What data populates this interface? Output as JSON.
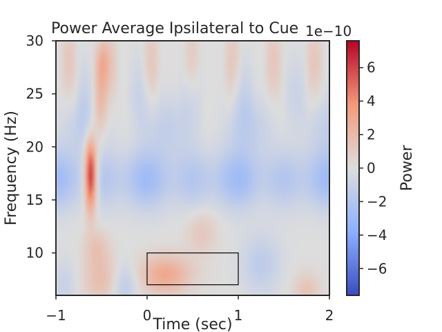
{
  "chart_data": {
    "type": "heatmap",
    "title": "Power Average Ipsilateral to Cue",
    "xlabel": "Time (sec)",
    "ylabel": "Frequency (Hz)",
    "xlim": [
      -1,
      2
    ],
    "ylim": [
      6,
      30
    ],
    "xticks": [
      "−1",
      "0",
      "1",
      "2"
    ],
    "yticks": [
      "10",
      "15",
      "20",
      "25",
      "30"
    ],
    "colormap": "coolwarm",
    "colorbar": {
      "label": "Power",
      "offset_text": "1e−10",
      "range": [
        -7.6,
        7.6
      ],
      "ticks": [
        "−6",
        "−4",
        "−2",
        "0",
        "2",
        "4",
        "6"
      ]
    },
    "features": [
      {
        "description": "positive power streak",
        "t": -0.6,
        "f": [
          14,
          25
        ],
        "value_peak": 6.5
      },
      {
        "description": "broad negative beta band",
        "t": [
          -1,
          2
        ],
        "f": [
          15,
          20
        ],
        "value": -3
      },
      {
        "description": "positive alpha power after cue",
        "t": [
          0,
          1
        ],
        "f": [
          7,
          10
        ],
        "value": 3
      }
    ],
    "annotations": [
      {
        "type": "rectangle",
        "t": [
          0,
          1
        ],
        "f": [
          7,
          10
        ]
      }
    ],
    "grid": false
  }
}
